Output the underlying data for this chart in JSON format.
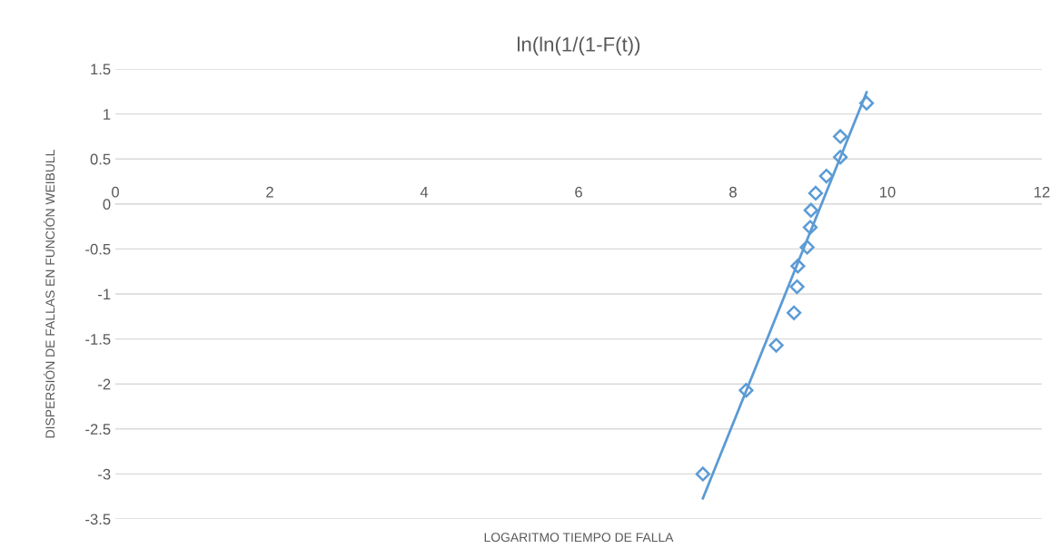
{
  "chart_data": {
    "type": "scatter",
    "title": "ln(ln(1/(1-F(t))",
    "xlabel": "LOGARITMO TIEMPO DE FALLA",
    "ylabel": "DISPERSIÓN DE FALLAS EN FUNCIÓN WEIBULL",
    "xlim": [
      0,
      12
    ],
    "xticks": [
      0,
      2,
      4,
      6,
      8,
      10,
      12
    ],
    "ylim": [
      -3.5,
      1.5
    ],
    "yticks": [
      -3.5,
      -3,
      -2.5,
      -2,
      -1.5,
      -1,
      -0.5,
      0,
      0.5,
      1,
      1.5
    ],
    "grid": "y",
    "legend": false,
    "series": [
      {
        "color": "#5b9bd5",
        "marker": "diamond",
        "x": [
          7.61,
          8.17,
          8.56,
          8.79,
          8.83,
          8.84,
          8.96,
          9.0,
          9.01,
          9.07,
          9.21,
          9.39,
          9.39,
          9.73
        ],
        "values": [
          -3.0,
          -2.07,
          -1.57,
          -1.21,
          -0.92,
          -0.69,
          -0.48,
          -0.26,
          -0.07,
          0.12,
          0.31,
          0.52,
          0.75,
          1.12
        ]
      },
      {
        "type": "line",
        "color": "#5b9bd5",
        "marker": "none",
        "x": [
          7.61,
          9.73
        ],
        "values": [
          -3.27,
          1.24
        ]
      }
    ]
  }
}
